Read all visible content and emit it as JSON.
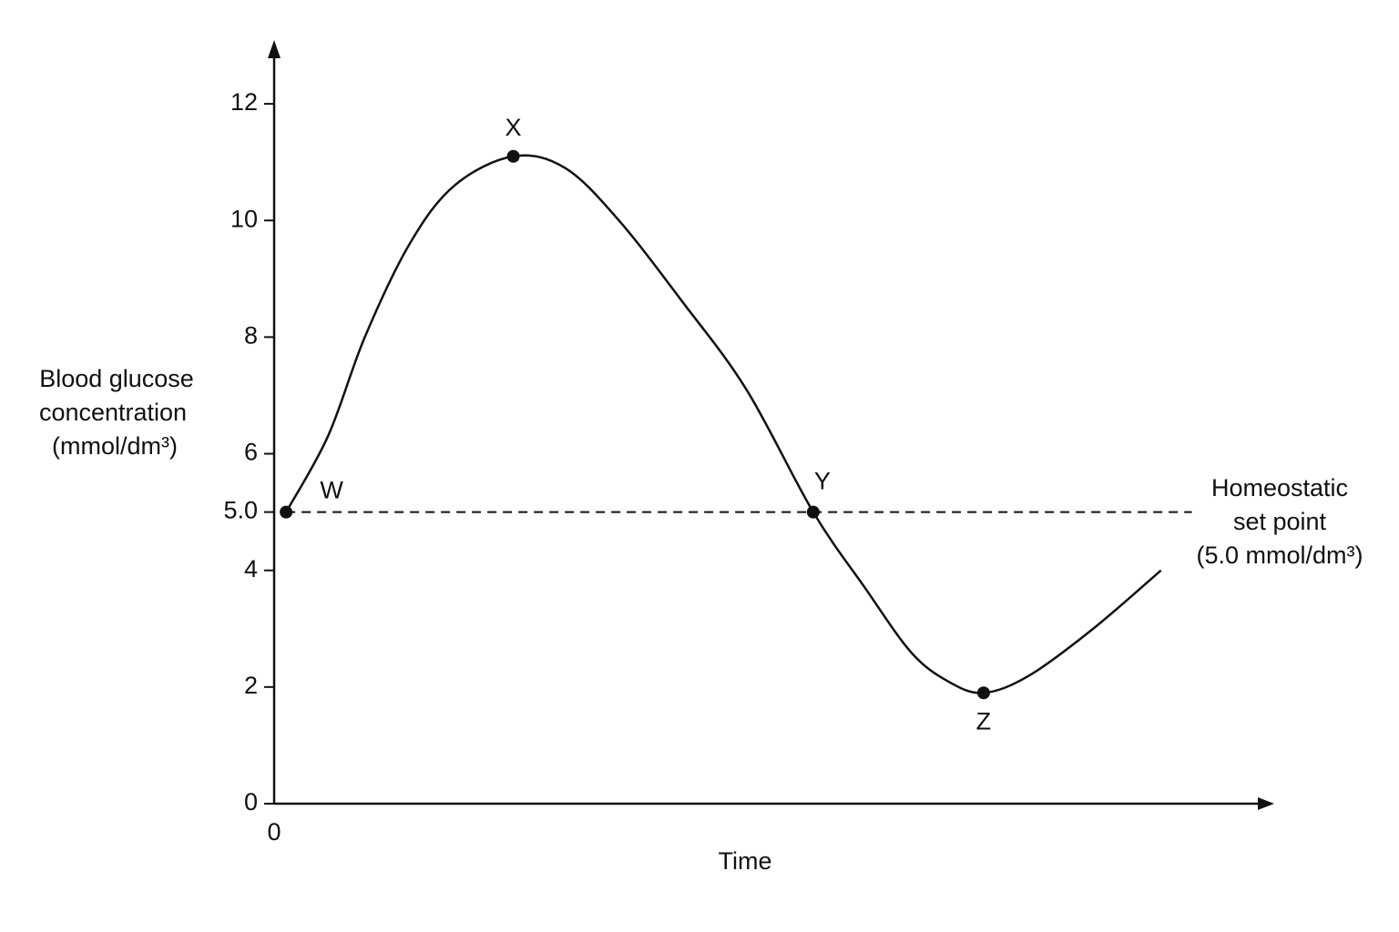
{
  "chart_data": {
    "type": "line",
    "y_label": [
      "Blood glucose",
      "concentration",
      "(mmol/dm³)"
    ],
    "x_label": "Time",
    "xlim": [
      0,
      100
    ],
    "xticks": [
      0
    ],
    "ylim": [
      0,
      13
    ],
    "yticks": [
      0,
      2,
      4,
      {
        "value": 5,
        "label": "5.0"
      },
      6,
      8,
      10,
      12
    ],
    "series": [
      {
        "color": "#111111",
        "x": [
          1.2,
          5.4,
          9.1,
          13.6,
          18.1,
          24.0,
          29.2,
          34.6,
          41.0,
          47.4,
          54.1,
          59.3,
          63.9,
          67.6,
          71.2,
          75.8,
          82.2,
          89.0
        ],
        "values": [
          5.0,
          6.3,
          8.0,
          9.6,
          10.6,
          11.1,
          10.9,
          10.0,
          8.6,
          7.1,
          5.0,
          3.7,
          2.6,
          2.1,
          1.9,
          2.2,
          3.0,
          4.0
        ]
      }
    ],
    "points": [
      {
        "label": "W",
        "x": 1.2,
        "y": 5.0
      },
      {
        "label": "X",
        "x": 24.0,
        "y": 11.1
      },
      {
        "label": "Y",
        "x": 54.1,
        "y": 5.0
      },
      {
        "label": "Z",
        "x": 71.2,
        "y": 1.9
      }
    ],
    "reference_line": {
      "value": 5,
      "x": [
        1.2,
        92.1
      ],
      "label": [
        "Homeostatic",
        "set point",
        "(5.0 mmol/dm³)"
      ]
    }
  }
}
